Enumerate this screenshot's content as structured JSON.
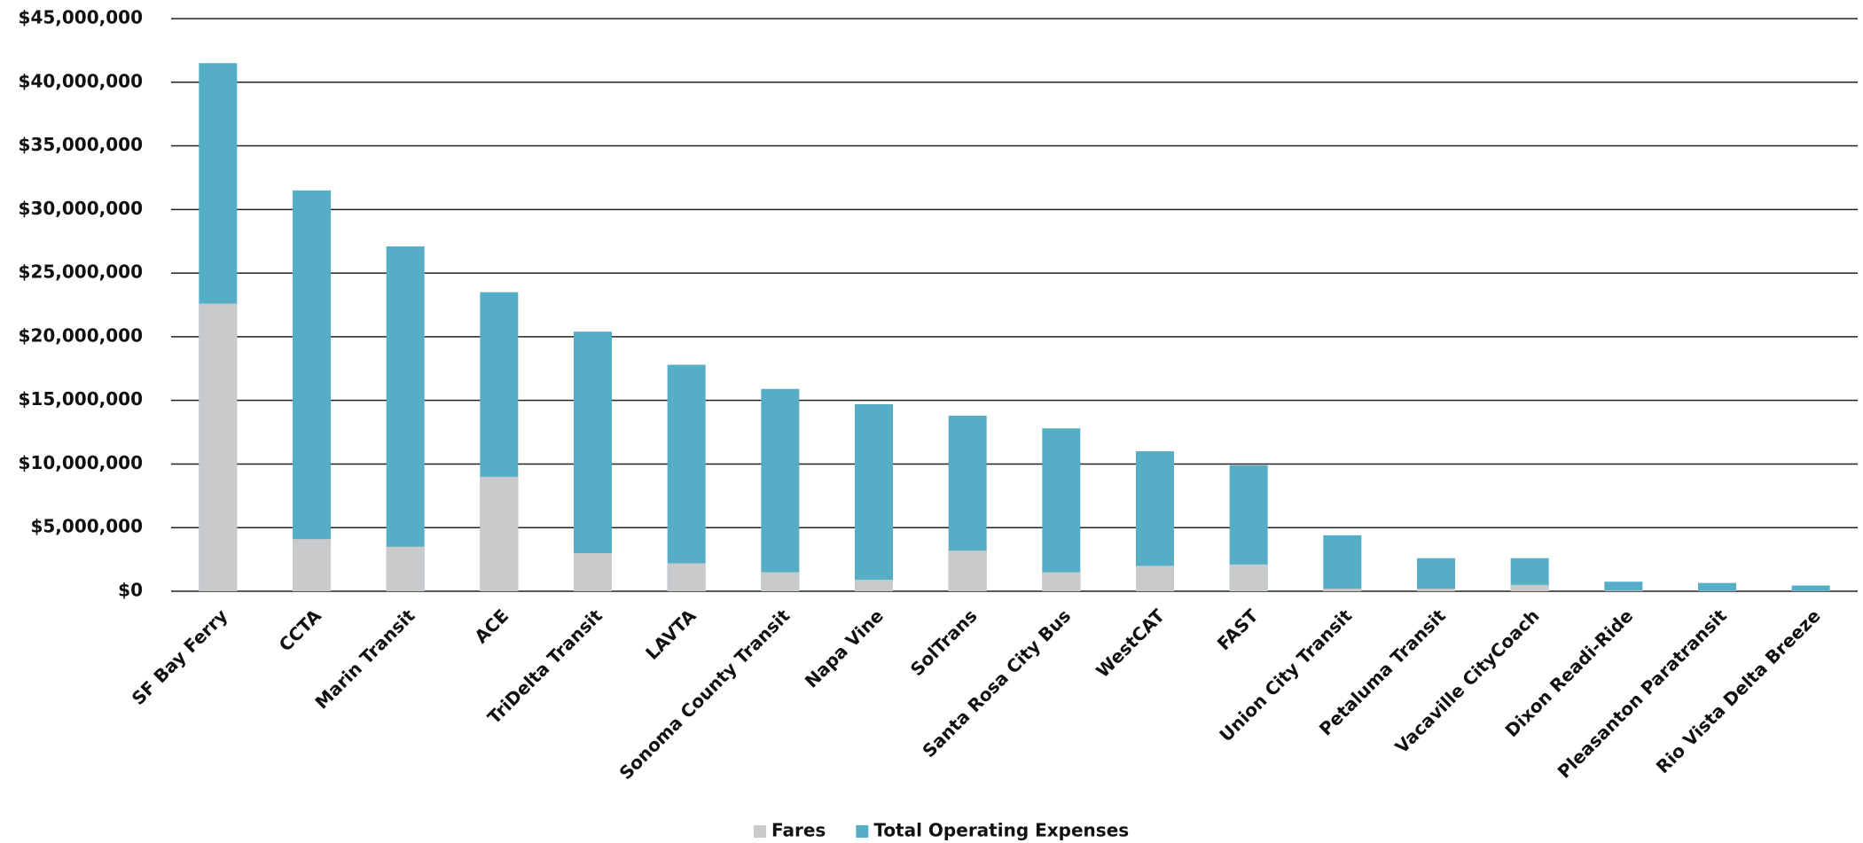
{
  "chart_data": {
    "type": "bar",
    "categories": [
      "SF Bay Ferry",
      "CCTA",
      "Marin Transit",
      "ACE",
      "TriDelta Transit",
      "LAVTA",
      "Sonoma County Transit",
      "Napa Vine",
      "SolTrans",
      "Santa Rosa City Bus",
      "WestCAT",
      "FAST",
      "Union City Transit",
      "Petaluma Transit",
      "Vacaville CityCoach",
      "Dixon Readi-Ride",
      "Pleasanton Paratransit",
      "Rio Vista Delta Breeze"
    ],
    "series": [
      {
        "name": "Fares",
        "color": "#c8cacb",
        "values": [
          22600000,
          4100000,
          3500000,
          9000000,
          3000000,
          2200000,
          1500000,
          900000,
          3200000,
          1500000,
          2000000,
          2100000,
          200000,
          200000,
          500000,
          50000,
          30000,
          20000
        ]
      },
      {
        "name": "Total Operating Expenses",
        "color": "#56adc6",
        "values": [
          41500000,
          31500000,
          27100000,
          23500000,
          20400000,
          17800000,
          15900000,
          14700000,
          13800000,
          12800000,
          11000000,
          9900000,
          4400000,
          2600000,
          2600000,
          750000,
          650000,
          450000
        ]
      }
    ],
    "overlap": true,
    "ylim": [
      0,
      45000000
    ],
    "yticks": [
      {
        "value": 0,
        "label": "$0"
      },
      {
        "value": 5000000,
        "label": "$5,000,000"
      },
      {
        "value": 10000000,
        "label": "$10,000,000"
      },
      {
        "value": 15000000,
        "label": "$15,000,000"
      },
      {
        "value": 20000000,
        "label": "$20,000,000"
      },
      {
        "value": 25000000,
        "label": "$25,000,000"
      },
      {
        "value": 30000000,
        "label": "$30,000,000"
      },
      {
        "value": 35000000,
        "label": "$35,000,000"
      },
      {
        "value": 40000000,
        "label": "$40,000,000"
      },
      {
        "value": 45000000,
        "label": "$45,000,000"
      }
    ],
    "grid": true,
    "legend": "bottom"
  }
}
